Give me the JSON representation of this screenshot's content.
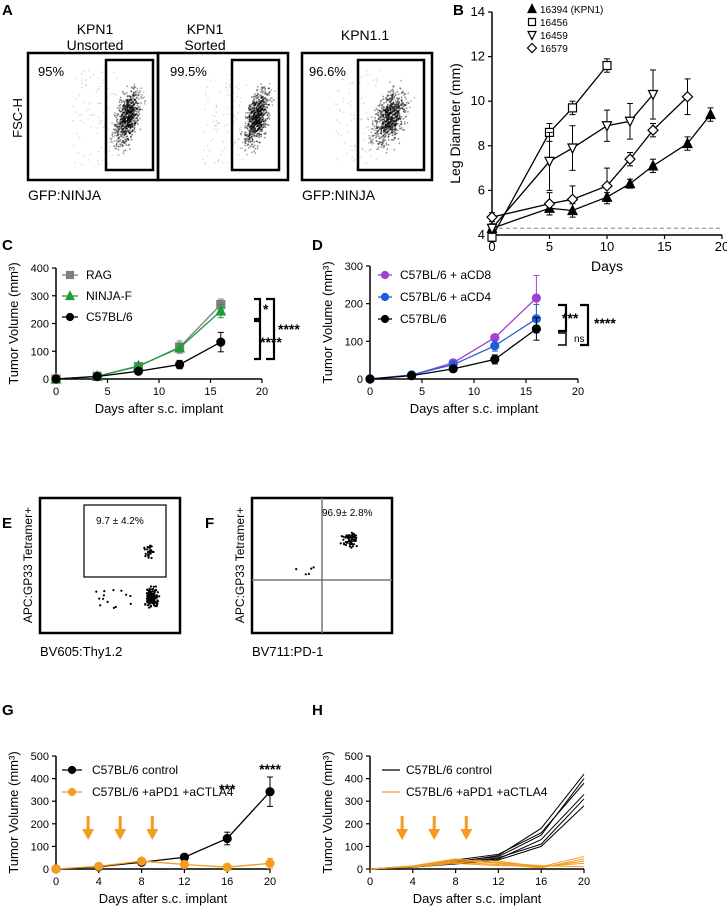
{
  "panels": {
    "A": {
      "letter": "A",
      "ylabel": "FSC-H",
      "xlabel": "GFP:NINJA",
      "plots": [
        {
          "title_line1": "KPN1",
          "title_line2": "Unsorted",
          "gate_pct": "95%"
        },
        {
          "title_line1": "KPN1",
          "title_line2": "Sorted",
          "gate_pct": "99.5%"
        },
        {
          "title_line1": "KPN1.1",
          "title_line2": "",
          "gate_pct": "96.6%"
        }
      ]
    },
    "B": {
      "letter": "B"
    },
    "C": {
      "letter": "C"
    },
    "D": {
      "letter": "D"
    },
    "E": {
      "letter": "E",
      "ylabel": "APC:GP33 Tetramer+",
      "xlabel": "BV605:Thy1.2",
      "gate_label": "9.7  ± 4.2%"
    },
    "F": {
      "letter": "F",
      "ylabel": "APC:GP33 Tetramer+",
      "xlabel": "BV711:PD-1",
      "gate_label": "96.9±  2.8%"
    },
    "G": {
      "letter": "G"
    },
    "H": {
      "letter": "H"
    }
  },
  "chart_data": [
    {
      "id": "B",
      "type": "line",
      "ylabel": "Leg Diameter (mm)",
      "xlabel": "Days",
      "xlim": [
        0,
        20
      ],
      "ylim": [
        4,
        14
      ],
      "xticks": [
        "0",
        "5",
        "10",
        "15",
        "20"
      ],
      "yticks": [
        "4",
        "6",
        "8",
        "10",
        "12",
        "14"
      ],
      "baseline": 4.3,
      "series": [
        {
          "name": "16394 (KPN1)",
          "marker": "triangle-up",
          "x": [
            0,
            5,
            7,
            10,
            12,
            14,
            17,
            19
          ],
          "y": [
            4.3,
            5.2,
            5.1,
            5.7,
            6.3,
            7.1,
            8.1,
            9.4
          ],
          "err": [
            0.2,
            0.3,
            0.3,
            0.2,
            0.2,
            0.3,
            0.3,
            0.3
          ]
        },
        {
          "name": "16456",
          "marker": "square",
          "x": [
            0,
            5,
            7,
            10
          ],
          "y": [
            3.9,
            8.6,
            9.7,
            11.6
          ],
          "err": [
            0.2,
            0.4,
            0.3,
            0.3
          ]
        },
        {
          "name": "16459",
          "marker": "triangle-down",
          "x": [
            0,
            5,
            7,
            10,
            12,
            14
          ],
          "y": [
            4.3,
            7.3,
            7.9,
            8.9,
            9.1,
            10.3
          ],
          "err": [
            0.2,
            1.3,
            1.0,
            0.7,
            0.8,
            1.1
          ]
        },
        {
          "name": "16579",
          "marker": "diamond",
          "x": [
            0,
            5,
            7,
            10,
            12,
            14,
            17
          ],
          "y": [
            4.8,
            5.4,
            5.6,
            6.2,
            7.4,
            8.7,
            10.2
          ],
          "err": [
            0.2,
            0.5,
            0.6,
            0.8,
            0.3,
            0.3,
            0.8
          ]
        }
      ]
    },
    {
      "id": "C",
      "type": "line",
      "ylabel": "Tumor Volume (mm³)",
      "xlabel": "Days after s.c. implant",
      "xlim": [
        0,
        20
      ],
      "ylim": [
        0,
        400
      ],
      "xticks": [
        "0",
        "5",
        "10",
        "15",
        "20"
      ],
      "yticks": [
        "0",
        "100",
        "200",
        "300",
        "400"
      ],
      "series": [
        {
          "name": "RAG",
          "color": "#808080",
          "marker": "square",
          "x": [
            0,
            4,
            8,
            12,
            16
          ],
          "y": [
            0,
            10,
            45,
            115,
            268
          ],
          "err": [
            0,
            4,
            6,
            22,
            20
          ]
        },
        {
          "name": "NINJA-F",
          "color": "#1e9c3c",
          "marker": "triangle-up",
          "x": [
            0,
            4,
            8,
            12,
            16
          ],
          "y": [
            0,
            10,
            47,
            112,
            245
          ],
          "err": [
            0,
            4,
            6,
            15,
            24
          ]
        },
        {
          "name": "C57BL/6",
          "color": "#000000",
          "marker": "circle",
          "x": [
            0,
            4,
            8,
            12,
            16
          ],
          "y": [
            0,
            9,
            28,
            52,
            133
          ],
          "err": [
            0,
            3,
            9,
            15,
            35
          ]
        }
      ],
      "annotations": [
        "*",
        "****",
        "****"
      ]
    },
    {
      "id": "D",
      "type": "line",
      "ylabel": "Tumor Volume (mm³)",
      "xlabel": "Days after s.c. implant",
      "xlim": [
        0,
        20
      ],
      "ylim": [
        0,
        300
      ],
      "xticks": [
        "0",
        "5",
        "10",
        "15",
        "20"
      ],
      "yticks": [
        "0",
        "100",
        "200",
        "300"
      ],
      "series": [
        {
          "name": "C57BL/6 + aCD8",
          "color": "#a040d0",
          "marker": "circle",
          "x": [
            0,
            4,
            8,
            12,
            16
          ],
          "y": [
            0,
            10,
            43,
            110,
            215
          ],
          "err": [
            0,
            3,
            8,
            8,
            60
          ]
        },
        {
          "name": "C57BL/6 + aCD4",
          "color": "#1f5ed8",
          "marker": "circle",
          "x": [
            0,
            4,
            8,
            12,
            16
          ],
          "y": [
            0,
            11,
            38,
            88,
            160
          ],
          "err": [
            0,
            3,
            8,
            14,
            38
          ]
        },
        {
          "name": "C57BL/6",
          "color": "#000000",
          "marker": "circle",
          "x": [
            0,
            4,
            8,
            12,
            16
          ],
          "y": [
            0,
            9,
            27,
            52,
            133
          ],
          "err": [
            0,
            3,
            8,
            12,
            30
          ]
        }
      ],
      "annotations": [
        "***",
        "ns",
        "****"
      ]
    },
    {
      "id": "G",
      "type": "line",
      "ylabel": "Tumor Volume (mm³)",
      "xlabel": "Days after s.c. implant",
      "xlim": [
        0,
        20
      ],
      "ylim": [
        0,
        500
      ],
      "xticks": [
        "0",
        "4",
        "8",
        "12",
        "16",
        "20"
      ],
      "yticks": [
        "0",
        "100",
        "200",
        "300",
        "400",
        "500"
      ],
      "arrows_days": [
        3,
        6,
        9
      ],
      "series": [
        {
          "name": "C57BL/6 control",
          "color": "#000000",
          "marker": "circle",
          "x": [
            0,
            4,
            8,
            12,
            16,
            20
          ],
          "y": [
            0,
            10,
            30,
            52,
            135,
            342
          ],
          "err": [
            0,
            4,
            6,
            15,
            28,
            65
          ]
        },
        {
          "name": "C57BL/6 +aPD1 +aCTLA4",
          "color": "#f39c1f",
          "marker": "circle",
          "x": [
            0,
            4,
            8,
            12,
            16,
            20
          ],
          "y": [
            0,
            12,
            35,
            20,
            8,
            25
          ],
          "err": [
            0,
            4,
            6,
            6,
            5,
            22
          ]
        }
      ],
      "annotations": [
        "***",
        "****"
      ]
    },
    {
      "id": "H",
      "type": "line",
      "ylabel": "Tumor Volume (mm³)",
      "xlabel": "Days after s.c. implant",
      "xlim": [
        0,
        20
      ],
      "ylim": [
        0,
        500
      ],
      "xticks": [
        "0",
        "4",
        "8",
        "12",
        "16",
        "20"
      ],
      "yticks": [
        "0",
        "100",
        "200",
        "300",
        "400",
        "500"
      ],
      "arrows_days": [
        3,
        6,
        9
      ],
      "legend": [
        {
          "name": "C57BL/6 control",
          "color": "#000000"
        },
        {
          "name": "C57BL/6 +aPD1 +aCTLA4",
          "color": "#f39c1f"
        }
      ],
      "x": [
        0,
        4,
        8,
        12,
        16,
        20
      ],
      "control_lines": [
        [
          0,
          10,
          30,
          60,
          180,
          420
        ],
        [
          0,
          12,
          35,
          55,
          150,
          400
        ],
        [
          0,
          8,
          25,
          45,
          130,
          330
        ],
        [
          0,
          10,
          28,
          50,
          110,
          310
        ],
        [
          0,
          9,
          22,
          40,
          100,
          280
        ],
        [
          0,
          11,
          40,
          65,
          160,
          380
        ]
      ],
      "treated_lines": [
        [
          0,
          12,
          40,
          35,
          10,
          55
        ],
        [
          0,
          10,
          30,
          20,
          5,
          45
        ],
        [
          0,
          14,
          45,
          25,
          8,
          35
        ],
        [
          0,
          9,
          25,
          15,
          12,
          25
        ],
        [
          0,
          11,
          35,
          28,
          15,
          10
        ]
      ]
    }
  ]
}
